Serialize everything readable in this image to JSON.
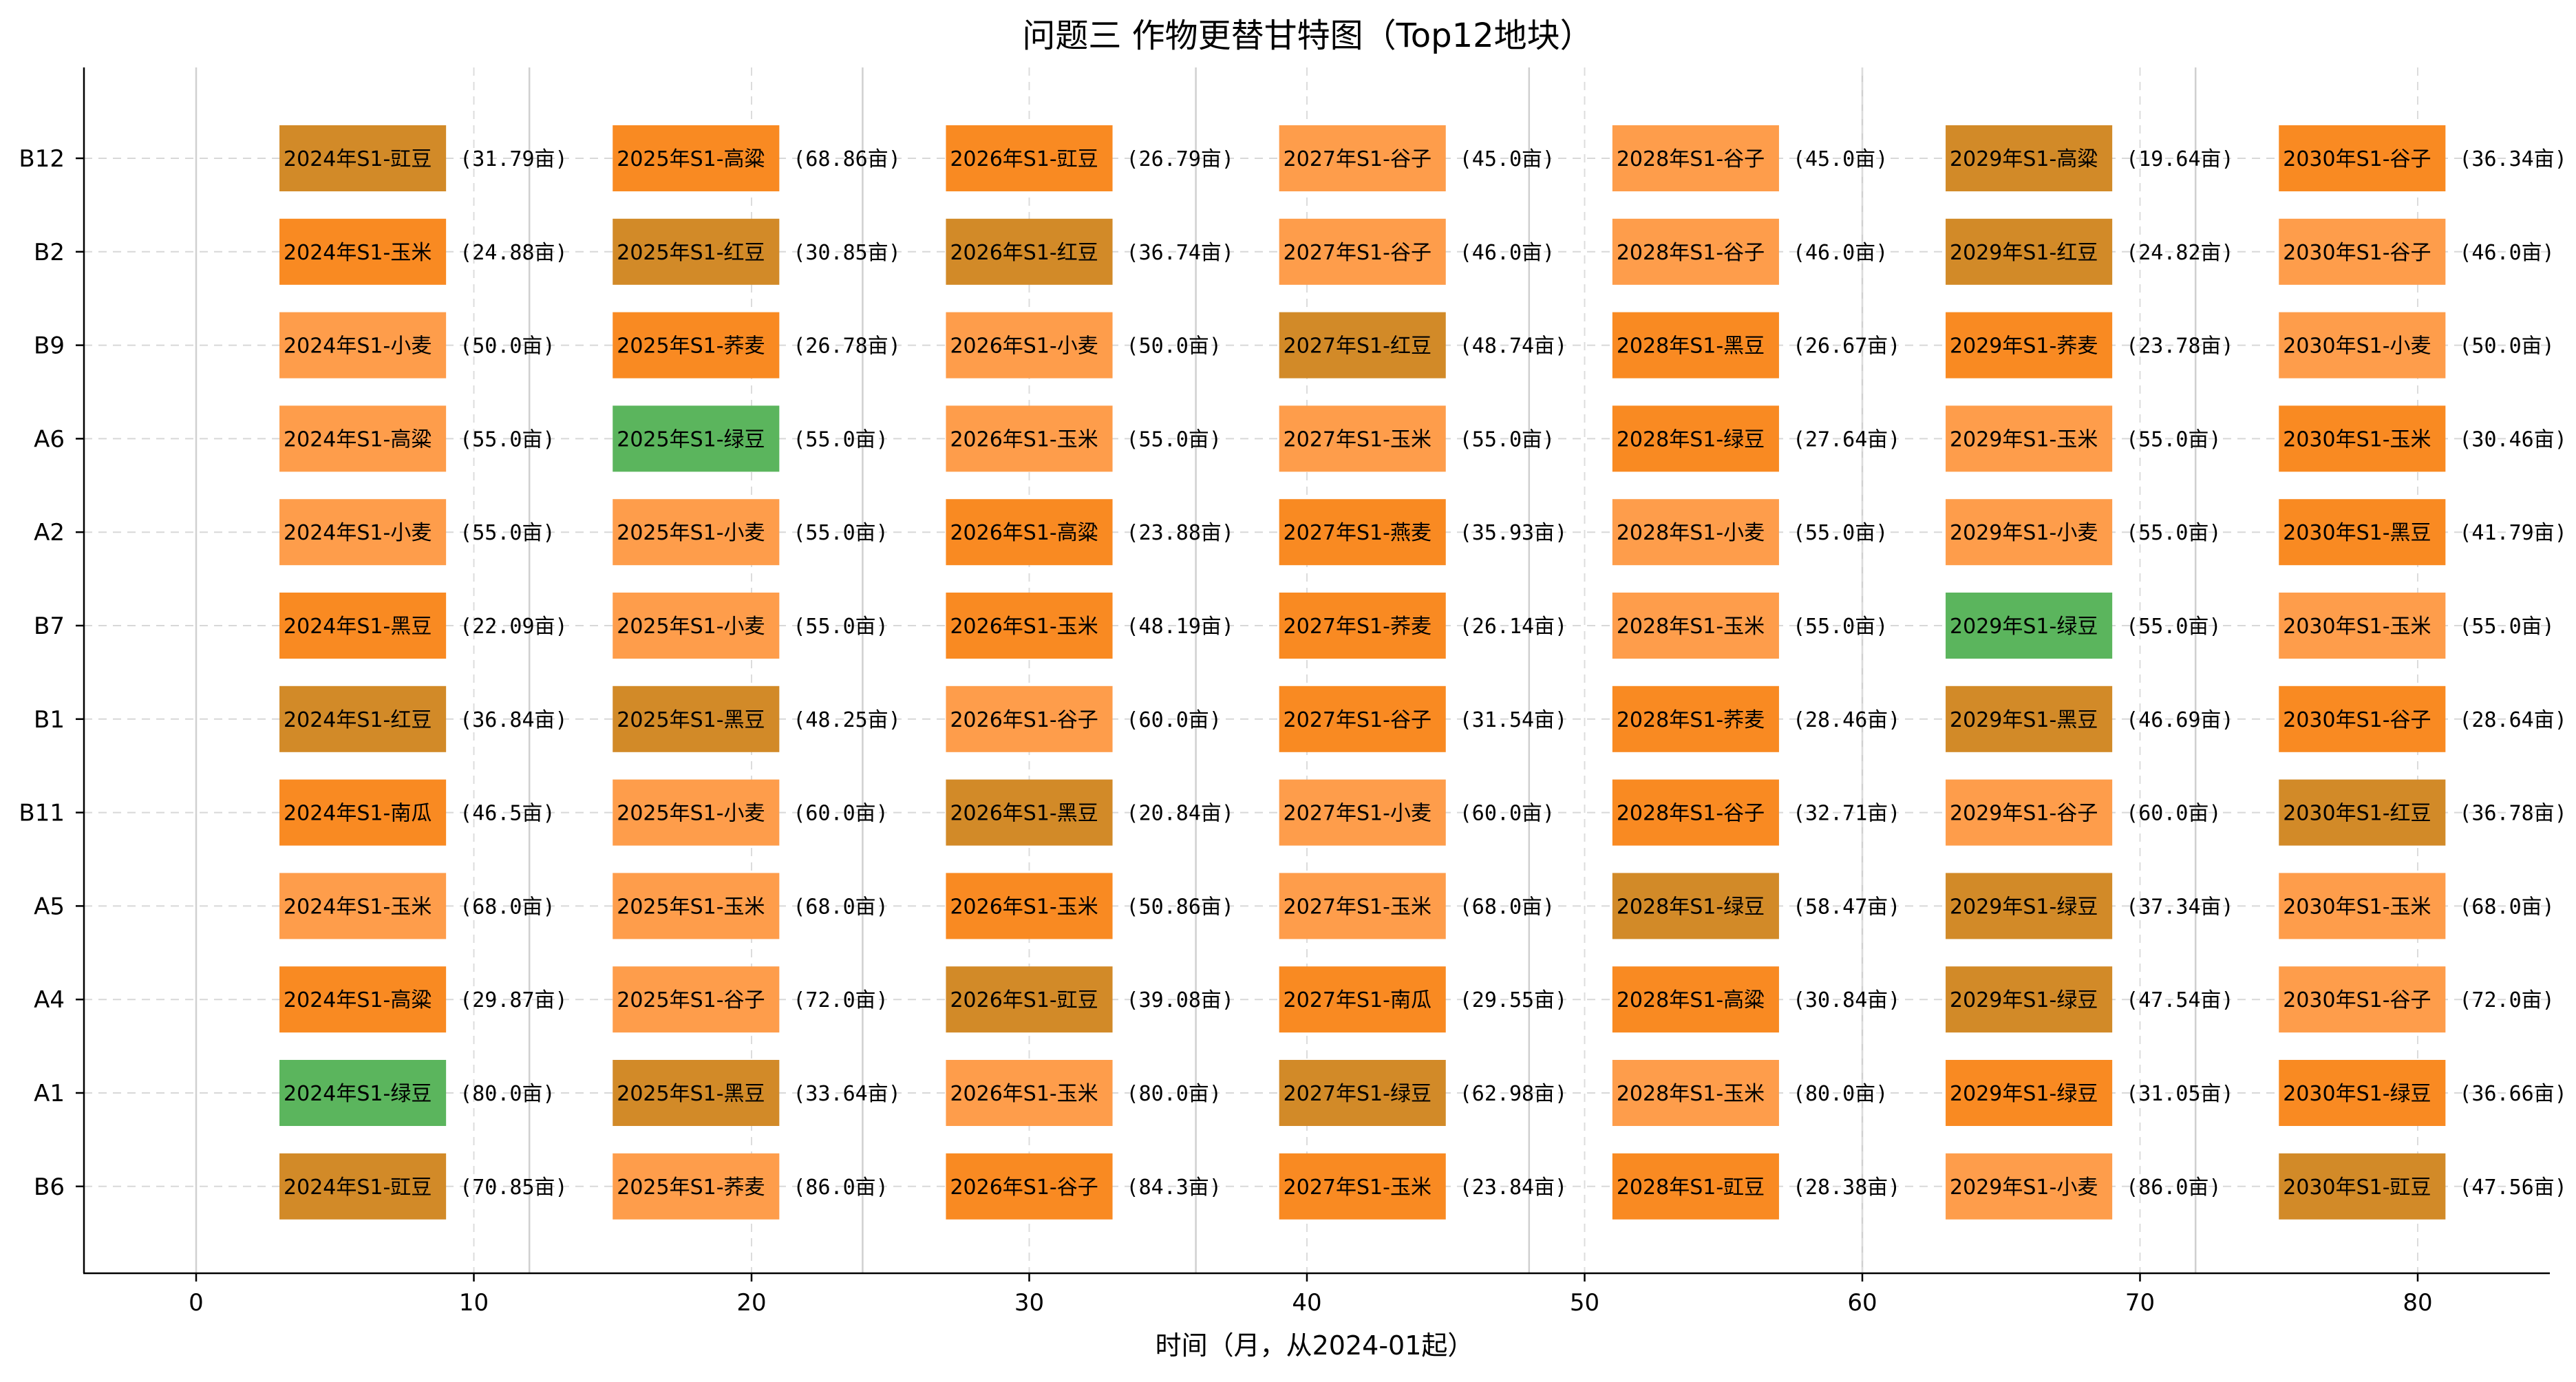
{
  "chart_data": {
    "type": "gantt",
    "title": "问题三 作物更替甘特图（Top12地块）",
    "xlabel": "时间（月，从2024-01起）",
    "ylabel": "",
    "xlim": [
      -4,
      85
    ],
    "xticks": [
      0,
      10,
      20,
      30,
      40,
      50,
      60,
      70,
      80
    ],
    "year_lines": [
      0,
      12,
      24,
      36,
      48,
      60,
      72
    ],
    "season_lines": [
      10,
      20,
      30,
      40,
      50,
      60,
      70,
      80
    ],
    "grid": "horizontal dashed",
    "bar_start_month": 3,
    "bar_duration": 6,
    "colors": {
      "light": "#fe9d4b",
      "orange": "#f98a22",
      "brown": "#d28a28",
      "green": "#5bb55d"
    },
    "plots": [
      "B12",
      "B2",
      "B9",
      "A6",
      "A2",
      "B7",
      "B1",
      "B11",
      "A5",
      "A4",
      "A1",
      "B6"
    ],
    "years": [
      2024,
      2025,
      2026,
      2027,
      2028,
      2029,
      2030
    ],
    "rows": [
      {
        "plot": "B12",
        "cells": [
          {
            "label": "2024年S1-豇豆",
            "area": "(31.79亩)",
            "color": "brown"
          },
          {
            "label": "2025年S1-高粱",
            "area": "(68.86亩)",
            "color": "orange"
          },
          {
            "label": "2026年S1-豇豆",
            "area": "(26.79亩)",
            "color": "orange"
          },
          {
            "label": "2027年S1-谷子",
            "area": "(45.0亩)",
            "color": "light"
          },
          {
            "label": "2028年S1-谷子",
            "area": "(45.0亩)",
            "color": "light"
          },
          {
            "label": "2029年S1-高粱",
            "area": "(19.64亩)",
            "color": "brown"
          },
          {
            "label": "2030年S1-谷子",
            "area": "(36.34亩)",
            "color": "orange"
          }
        ]
      },
      {
        "plot": "B2",
        "cells": [
          {
            "label": "2024年S1-玉米",
            "area": "(24.88亩)",
            "color": "orange"
          },
          {
            "label": "2025年S1-红豆",
            "area": "(30.85亩)",
            "color": "brown"
          },
          {
            "label": "2026年S1-红豆",
            "area": "(36.74亩)",
            "color": "brown"
          },
          {
            "label": "2027年S1-谷子",
            "area": "(46.0亩)",
            "color": "light"
          },
          {
            "label": "2028年S1-谷子",
            "area": "(46.0亩)",
            "color": "light"
          },
          {
            "label": "2029年S1-红豆",
            "area": "(24.82亩)",
            "color": "brown"
          },
          {
            "label": "2030年S1-谷子",
            "area": "(46.0亩)",
            "color": "light"
          }
        ]
      },
      {
        "plot": "B9",
        "cells": [
          {
            "label": "2024年S1-小麦",
            "area": "(50.0亩)",
            "color": "light"
          },
          {
            "label": "2025年S1-荞麦",
            "area": "(26.78亩)",
            "color": "orange"
          },
          {
            "label": "2026年S1-小麦",
            "area": "(50.0亩)",
            "color": "light"
          },
          {
            "label": "2027年S1-红豆",
            "area": "(48.74亩)",
            "color": "brown"
          },
          {
            "label": "2028年S1-黑豆",
            "area": "(26.67亩)",
            "color": "orange"
          },
          {
            "label": "2029年S1-荞麦",
            "area": "(23.78亩)",
            "color": "orange"
          },
          {
            "label": "2030年S1-小麦",
            "area": "(50.0亩)",
            "color": "light"
          }
        ]
      },
      {
        "plot": "A6",
        "cells": [
          {
            "label": "2024年S1-高粱",
            "area": "(55.0亩)",
            "color": "light"
          },
          {
            "label": "2025年S1-绿豆",
            "area": "(55.0亩)",
            "color": "green"
          },
          {
            "label": "2026年S1-玉米",
            "area": "(55.0亩)",
            "color": "light"
          },
          {
            "label": "2027年S1-玉米",
            "area": "(55.0亩)",
            "color": "light"
          },
          {
            "label": "2028年S1-绿豆",
            "area": "(27.64亩)",
            "color": "orange"
          },
          {
            "label": "2029年S1-玉米",
            "area": "(55.0亩)",
            "color": "light"
          },
          {
            "label": "2030年S1-玉米",
            "area": "(30.46亩)",
            "color": "orange"
          }
        ]
      },
      {
        "plot": "A2",
        "cells": [
          {
            "label": "2024年S1-小麦",
            "area": "(55.0亩)",
            "color": "light"
          },
          {
            "label": "2025年S1-小麦",
            "area": "(55.0亩)",
            "color": "light"
          },
          {
            "label": "2026年S1-高粱",
            "area": "(23.88亩)",
            "color": "orange"
          },
          {
            "label": "2027年S1-燕麦",
            "area": "(35.93亩)",
            "color": "orange"
          },
          {
            "label": "2028年S1-小麦",
            "area": "(55.0亩)",
            "color": "light"
          },
          {
            "label": "2029年S1-小麦",
            "area": "(55.0亩)",
            "color": "light"
          },
          {
            "label": "2030年S1-黑豆",
            "area": "(41.79亩)",
            "color": "orange"
          }
        ]
      },
      {
        "plot": "B7",
        "cells": [
          {
            "label": "2024年S1-黑豆",
            "area": "(22.09亩)",
            "color": "orange"
          },
          {
            "label": "2025年S1-小麦",
            "area": "(55.0亩)",
            "color": "light"
          },
          {
            "label": "2026年S1-玉米",
            "area": "(48.19亩)",
            "color": "orange"
          },
          {
            "label": "2027年S1-荞麦",
            "area": "(26.14亩)",
            "color": "orange"
          },
          {
            "label": "2028年S1-玉米",
            "area": "(55.0亩)",
            "color": "light"
          },
          {
            "label": "2029年S1-绿豆",
            "area": "(55.0亩)",
            "color": "green"
          },
          {
            "label": "2030年S1-玉米",
            "area": "(55.0亩)",
            "color": "light"
          }
        ]
      },
      {
        "plot": "B1",
        "cells": [
          {
            "label": "2024年S1-红豆",
            "area": "(36.84亩)",
            "color": "brown"
          },
          {
            "label": "2025年S1-黑豆",
            "area": "(48.25亩)",
            "color": "brown"
          },
          {
            "label": "2026年S1-谷子",
            "area": "(60.0亩)",
            "color": "light"
          },
          {
            "label": "2027年S1-谷子",
            "area": "(31.54亩)",
            "color": "orange"
          },
          {
            "label": "2028年S1-荞麦",
            "area": "(28.46亩)",
            "color": "orange"
          },
          {
            "label": "2029年S1-黑豆",
            "area": "(46.69亩)",
            "color": "brown"
          },
          {
            "label": "2030年S1-谷子",
            "area": "(28.64亩)",
            "color": "orange"
          }
        ]
      },
      {
        "plot": "B11",
        "cells": [
          {
            "label": "2024年S1-南瓜",
            "area": "(46.5亩)",
            "color": "orange"
          },
          {
            "label": "2025年S1-小麦",
            "area": "(60.0亩)",
            "color": "light"
          },
          {
            "label": "2026年S1-黑豆",
            "area": "(20.84亩)",
            "color": "brown"
          },
          {
            "label": "2027年S1-小麦",
            "area": "(60.0亩)",
            "color": "light"
          },
          {
            "label": "2028年S1-谷子",
            "area": "(32.71亩)",
            "color": "orange"
          },
          {
            "label": "2029年S1-谷子",
            "area": "(60.0亩)",
            "color": "light"
          },
          {
            "label": "2030年S1-红豆",
            "area": "(36.78亩)",
            "color": "brown"
          }
        ]
      },
      {
        "plot": "A5",
        "cells": [
          {
            "label": "2024年S1-玉米",
            "area": "(68.0亩)",
            "color": "light"
          },
          {
            "label": "2025年S1-玉米",
            "area": "(68.0亩)",
            "color": "light"
          },
          {
            "label": "2026年S1-玉米",
            "area": "(50.86亩)",
            "color": "orange"
          },
          {
            "label": "2027年S1-玉米",
            "area": "(68.0亩)",
            "color": "light"
          },
          {
            "label": "2028年S1-绿豆",
            "area": "(58.47亩)",
            "color": "brown"
          },
          {
            "label": "2029年S1-绿豆",
            "area": "(37.34亩)",
            "color": "brown"
          },
          {
            "label": "2030年S1-玉米",
            "area": "(68.0亩)",
            "color": "light"
          }
        ]
      },
      {
        "plot": "A4",
        "cells": [
          {
            "label": "2024年S1-高粱",
            "area": "(29.87亩)",
            "color": "orange"
          },
          {
            "label": "2025年S1-谷子",
            "area": "(72.0亩)",
            "color": "light"
          },
          {
            "label": "2026年S1-豇豆",
            "area": "(39.08亩)",
            "color": "brown"
          },
          {
            "label": "2027年S1-南瓜",
            "area": "(29.55亩)",
            "color": "orange"
          },
          {
            "label": "2028年S1-高粱",
            "area": "(30.84亩)",
            "color": "orange"
          },
          {
            "label": "2029年S1-绿豆",
            "area": "(47.54亩)",
            "color": "brown"
          },
          {
            "label": "2030年S1-谷子",
            "area": "(72.0亩)",
            "color": "light"
          }
        ]
      },
      {
        "plot": "A1",
        "cells": [
          {
            "label": "2024年S1-绿豆",
            "area": "(80.0亩)",
            "color": "green"
          },
          {
            "label": "2025年S1-黑豆",
            "area": "(33.64亩)",
            "color": "brown"
          },
          {
            "label": "2026年S1-玉米",
            "area": "(80.0亩)",
            "color": "light"
          },
          {
            "label": "2027年S1-绿豆",
            "area": "(62.98亩)",
            "color": "brown"
          },
          {
            "label": "2028年S1-玉米",
            "area": "(80.0亩)",
            "color": "light"
          },
          {
            "label": "2029年S1-绿豆",
            "area": "(31.05亩)",
            "color": "orange"
          },
          {
            "label": "2030年S1-绿豆",
            "area": "(36.66亩)",
            "color": "orange"
          }
        ]
      },
      {
        "plot": "B6",
        "cells": [
          {
            "label": "2024年S1-豇豆",
            "area": "(70.85亩)",
            "color": "brown"
          },
          {
            "label": "2025年S1-荞麦",
            "area": "(86.0亩)",
            "color": "light"
          },
          {
            "label": "2026年S1-谷子",
            "area": "(84.3亩)",
            "color": "orange"
          },
          {
            "label": "2027年S1-玉米",
            "area": "(23.84亩)",
            "color": "orange"
          },
          {
            "label": "2028年S1-豇豆",
            "area": "(28.38亩)",
            "color": "orange"
          },
          {
            "label": "2029年S1-小麦",
            "area": "(86.0亩)",
            "color": "light"
          },
          {
            "label": "2030年S1-豇豆",
            "area": "(47.56亩)",
            "color": "brown"
          }
        ]
      }
    ]
  }
}
